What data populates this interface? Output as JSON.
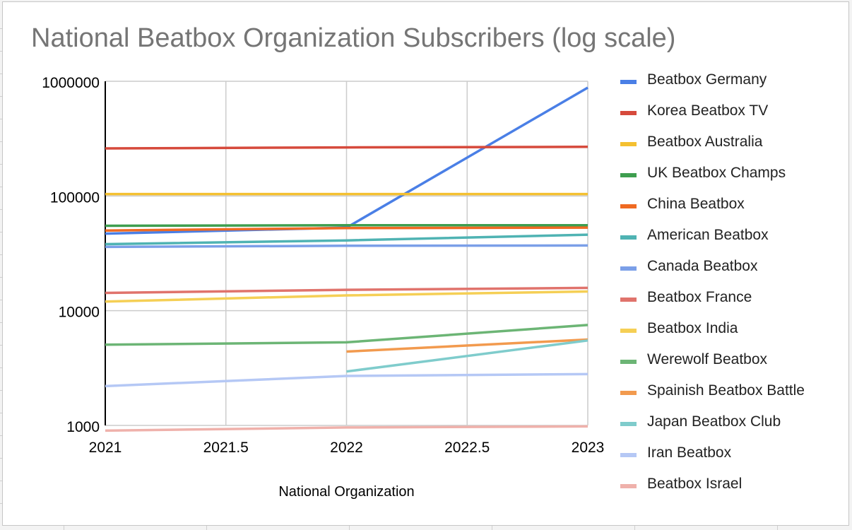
{
  "chart_data": {
    "type": "line",
    "title": "National Beatbox Organization Subscribers (log scale)",
    "xlabel": "National Organization",
    "ylabel": "",
    "y_scale": "log",
    "xlim": [
      2021,
      2023
    ],
    "ylim": [
      1000,
      1000000
    ],
    "x_ticks": [
      "2021",
      "2021.5",
      "2022",
      "2022.5",
      "2023"
    ],
    "x_tick_values": [
      2021,
      2021.5,
      2022,
      2022.5,
      2023
    ],
    "y_ticks": [
      "1000",
      "10000",
      "100000",
      "1000000"
    ],
    "y_tick_values": [
      1000,
      10000,
      100000,
      1000000
    ],
    "grid": true,
    "legend_position": "right",
    "series": [
      {
        "name": "Beatbox Germany",
        "color": "#4a7fe6",
        "x": [
          2021,
          2022,
          2023
        ],
        "y": [
          47000,
          53000,
          880000
        ]
      },
      {
        "name": "Korea Beatbox TV",
        "color": "#d64a3c",
        "x": [
          2021,
          2022,
          2023
        ],
        "y": [
          260000,
          265000,
          268000
        ]
      },
      {
        "name": "Beatbox Australia",
        "color": "#f4c030",
        "x": [
          2021,
          2022,
          2023
        ],
        "y": [
          104000,
          104000,
          104000
        ]
      },
      {
        "name": "UK Beatbox Champs",
        "color": "#3e9e4f",
        "x": [
          2021,
          2022,
          2023
        ],
        "y": [
          55000,
          55500,
          55500
        ]
      },
      {
        "name": "China Beatbox",
        "color": "#ef6a22",
        "x": [
          2021,
          2022,
          2023
        ],
        "y": [
          50000,
          52500,
          53000
        ]
      },
      {
        "name": "American Beatbox",
        "color": "#4fb3b3",
        "x": [
          2021,
          2022,
          2023
        ],
        "y": [
          38000,
          41000,
          46000
        ]
      },
      {
        "name": "Canada Beatbox",
        "color": "#7b9fe8",
        "x": [
          2021,
          2022,
          2023
        ],
        "y": [
          36000,
          36800,
          37000
        ]
      },
      {
        "name": "Beatbox France",
        "color": "#e0736c",
        "x": [
          2021,
          2022,
          2023
        ],
        "y": [
          14300,
          15200,
          15800
        ]
      },
      {
        "name": "Beatbox India",
        "color": "#f5cf55",
        "x": [
          2021,
          2022,
          2023
        ],
        "y": [
          12000,
          13600,
          14700
        ]
      },
      {
        "name": "Werewolf Beatbox",
        "color": "#6cb575",
        "x": [
          2021,
          2022,
          2023
        ],
        "y": [
          5050,
          5300,
          7500
        ]
      },
      {
        "name": "Spainish Beatbox Battle",
        "color": "#f29a4e",
        "x": [
          2022,
          2023
        ],
        "y": [
          4400,
          5600
        ]
      },
      {
        "name": "Japan Beatbox Club",
        "color": "#7fcccc",
        "x": [
          2022,
          2023
        ],
        "y": [
          2950,
          5500
        ]
      },
      {
        "name": "Iran Beatbox",
        "color": "#b5c8f5",
        "x": [
          2021,
          2022,
          2023
        ],
        "y": [
          2200,
          2700,
          2800
        ]
      },
      {
        "name": "Beatbox Israel",
        "color": "#efb1ab",
        "x": [
          2021,
          2022,
          2023
        ],
        "y": [
          900,
          960,
          980
        ]
      }
    ]
  }
}
